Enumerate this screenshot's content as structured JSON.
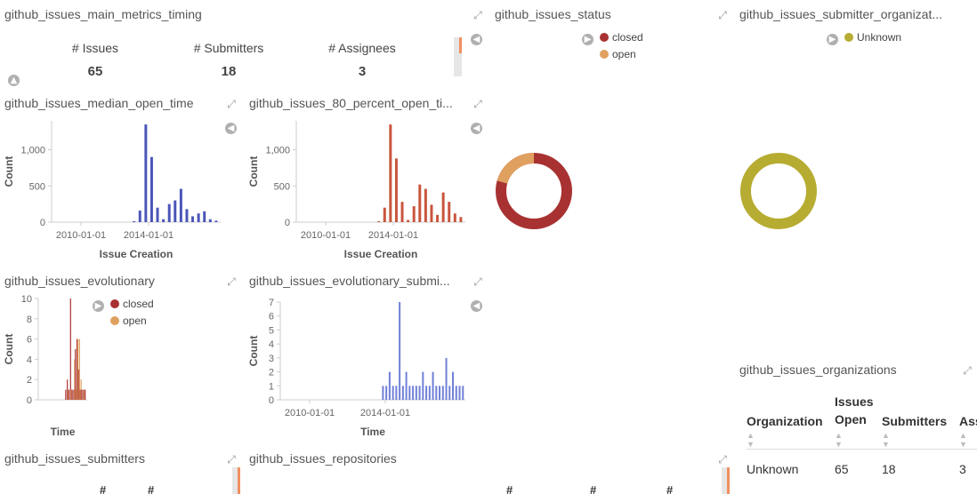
{
  "panels": {
    "main_metrics": {
      "title": "github_issues_main_metrics_timing",
      "metrics": [
        {
          "label": "# Issues",
          "value": "65"
        },
        {
          "label": "# Submitters",
          "value": "18"
        },
        {
          "label": "# Assignees",
          "value": "3"
        }
      ]
    },
    "status": {
      "title": "github_issues_status",
      "legend": [
        {
          "label": "closed",
          "color": "#a83232"
        },
        {
          "label": "open",
          "color": "#e0a060"
        }
      ],
      "pie_fractions": {
        "closed": 0.83,
        "open": 0.17
      }
    },
    "submitter_org": {
      "title": "github_issues_submitter_organizat...",
      "legend": [
        {
          "label": "Unknown",
          "color": "#b7ac32"
        }
      ]
    },
    "median_open_time": {
      "title": "github_issues_median_open_time"
    },
    "percent80_open_time": {
      "title": "github_issues_80_percent_open_ti..."
    },
    "evolutionary": {
      "title": "github_issues_evolutionary",
      "legend": [
        {
          "label": "closed",
          "color": "#a83232"
        },
        {
          "label": "open",
          "color": "#e0a060"
        }
      ]
    },
    "evolutionary_submitters": {
      "title": "github_issues_evolutionary_submi..."
    },
    "organizations": {
      "title": "github_issues_organizations",
      "columns": [
        "Organization",
        "Issues Open",
        "Submitters",
        "Ass"
      ],
      "rows": [
        [
          "Unknown",
          "65",
          "18",
          "3"
        ]
      ]
    },
    "submitters": {
      "title": "github_issues_submitters",
      "headers": [
        "#",
        "#"
      ]
    },
    "repositories": {
      "title": "github_issues_repositories",
      "headers": [
        "#",
        "#",
        "#"
      ]
    }
  },
  "chart_data": [
    {
      "type": "bar",
      "title": "",
      "xlabel": "Issue Creation",
      "ylabel": "Count",
      "ylim": [
        0,
        1400
      ],
      "yticks": [
        "0",
        "500",
        "1,000"
      ],
      "xticks": [
        "2010-01-01",
        "2014-01-01"
      ],
      "color": "#4a55b8",
      "x": [
        "2014-06",
        "2014-09",
        "2014-10",
        "2015-03",
        "2015-05",
        "2015-06",
        "2015-08",
        "2016-01",
        "2016-02",
        "2016-04",
        "2016-05",
        "2016-06",
        "2016-08",
        "2016-11",
        "2016-12"
      ],
      "values": [
        10,
        160,
        1350,
        900,
        200,
        40,
        250,
        300,
        460,
        180,
        80,
        120,
        150,
        40,
        20
      ]
    },
    {
      "type": "bar",
      "title": "",
      "xlabel": "Issue Creation",
      "ylabel": "Count",
      "ylim": [
        0,
        1400
      ],
      "yticks": [
        "0",
        "500",
        "1,000"
      ],
      "xticks": [
        "2010-01-01",
        "2014-01-01"
      ],
      "color": "#c8553c",
      "x": [
        "2014-06",
        "2014-09",
        "2014-10",
        "2015-03",
        "2015-05",
        "2015-06",
        "2015-08",
        "2016-01",
        "2016-02",
        "2016-04",
        "2016-05",
        "2016-06",
        "2016-08",
        "2016-11",
        "2016-12"
      ],
      "values": [
        10,
        200,
        1350,
        880,
        280,
        30,
        220,
        520,
        460,
        240,
        100,
        410,
        280,
        120,
        70
      ]
    },
    {
      "type": "bar",
      "title": "",
      "xlabel": "Time",
      "ylabel": "Count",
      "ylim": [
        0,
        10
      ],
      "yticks": [
        "0",
        "2",
        "4",
        "6",
        "8",
        "10"
      ],
      "series": [
        {
          "name": "closed",
          "color": "#a83232",
          "values": [
            1,
            2,
            1,
            10,
            1,
            1,
            5,
            6,
            3,
            1,
            1,
            1,
            1
          ]
        },
        {
          "name": "open",
          "color": "#e0a060",
          "values": [
            0,
            1,
            0,
            1,
            0,
            4,
            1,
            6,
            6,
            2,
            0,
            1,
            0
          ]
        }
      ]
    },
    {
      "type": "bar",
      "title": "",
      "xlabel": "Time",
      "ylabel": "Count",
      "ylim": [
        0,
        7
      ],
      "yticks": [
        "0",
        "1",
        "2",
        "3",
        "4",
        "5",
        "6",
        "7"
      ],
      "xticks": [
        "2010-01-01",
        "2014-01-01"
      ],
      "color": "#7080d8",
      "values": [
        1,
        1,
        2,
        1,
        1,
        7,
        1,
        2,
        1,
        1,
        1,
        1,
        2,
        1,
        1,
        2,
        1,
        1,
        1,
        3,
        1,
        2,
        1,
        1,
        1
      ]
    }
  ]
}
